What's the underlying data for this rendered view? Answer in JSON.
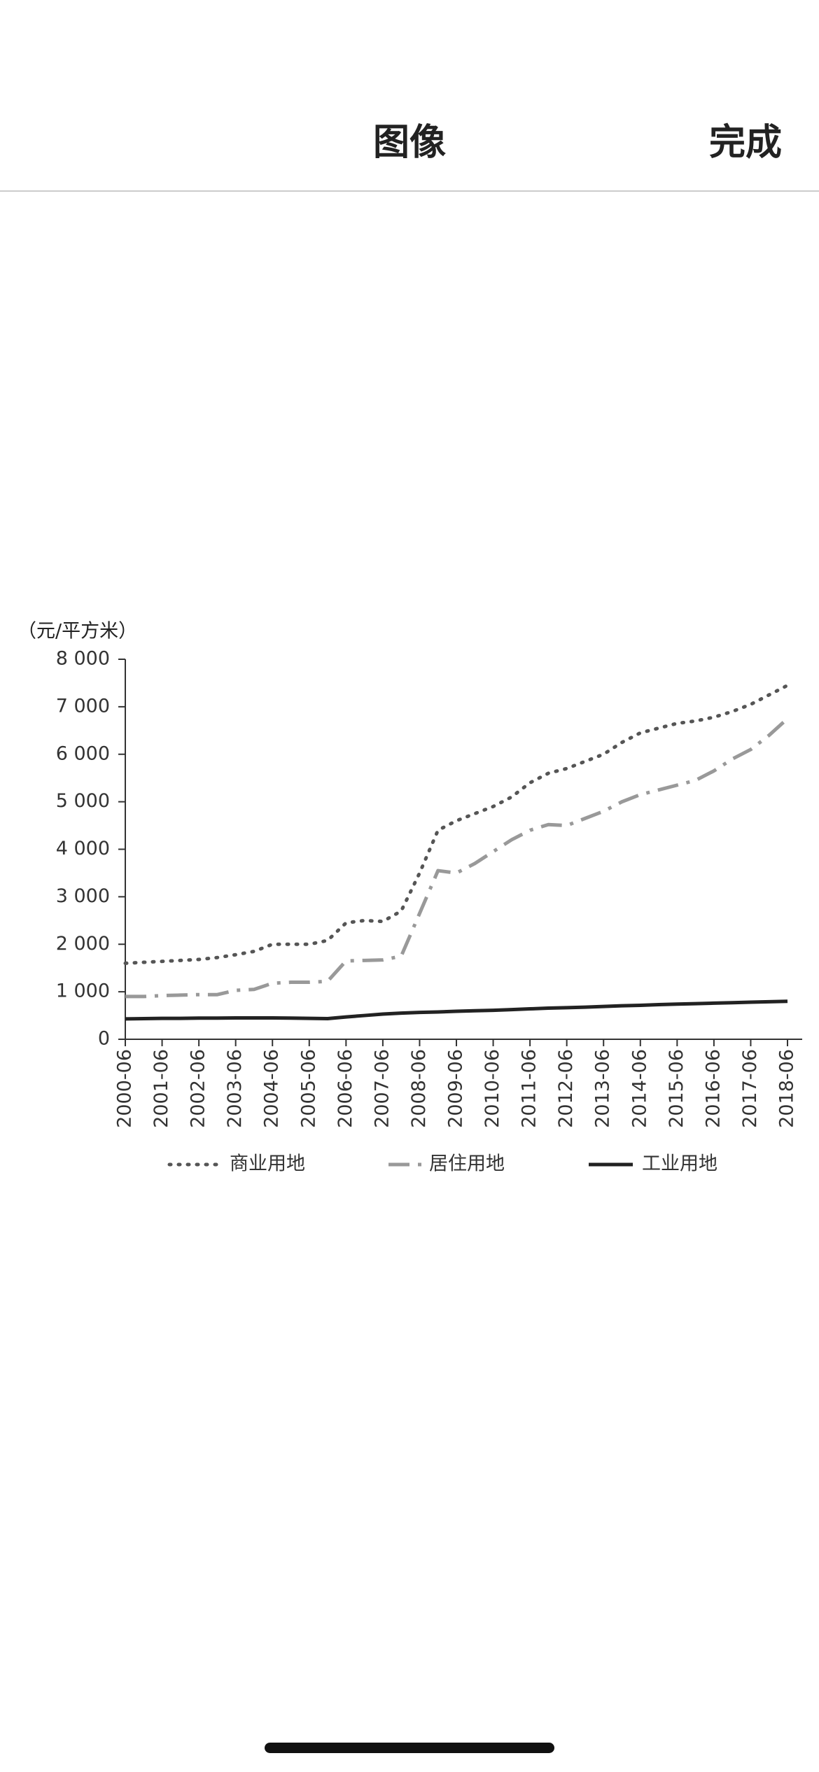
{
  "header": {
    "title": "图像",
    "done": "完成"
  },
  "chart_data": {
    "type": "line",
    "y_label": "（元/平方米）",
    "categories": [
      "2000-06",
      null,
      "2001-06",
      null,
      "2002-06",
      null,
      "2003-06",
      null,
      "2004-06",
      null,
      "2005-06",
      null,
      "2006-06",
      null,
      "2007-06",
      null,
      "2008-06",
      null,
      "2009-06",
      null,
      "2010-06",
      null,
      "2011-06",
      null,
      "2012-06",
      null,
      "2013-06",
      null,
      "2014-06",
      null,
      "2015-06",
      null,
      "2016-06",
      null,
      "2017-06",
      null,
      "2018-06"
    ],
    "series": [
      {
        "name": "商业用地",
        "color": "#555555",
        "values": [
          1600,
          1620,
          1640,
          1660,
          1680,
          1720,
          1780,
          1850,
          2000,
          2000,
          2000,
          2080,
          2450,
          2500,
          2480,
          2700,
          3500,
          4400,
          4600,
          4750,
          4900,
          5100,
          5400,
          5600,
          5700,
          5850,
          6000,
          6250,
          6450,
          6550,
          6650,
          6700,
          6780,
          6900,
          7050,
          7250,
          7450
        ]
      },
      {
        "name": "居住用地",
        "color": "#999999",
        "values": [
          900,
          900,
          920,
          930,
          940,
          940,
          1030,
          1050,
          1180,
          1200,
          1200,
          1220,
          1650,
          1660,
          1670,
          1750,
          2650,
          3550,
          3500,
          3700,
          3950,
          4200,
          4400,
          4520,
          4500,
          4650,
          4800,
          5000,
          5150,
          5250,
          5350,
          5450,
          5650,
          5900,
          6100,
          6400,
          6750
        ]
      },
      {
        "name": "工业用地",
        "color": "#222222",
        "values": [
          430,
          435,
          440,
          440,
          445,
          445,
          450,
          450,
          450,
          445,
          440,
          435,
          470,
          500,
          530,
          550,
          565,
          575,
          590,
          600,
          610,
          625,
          640,
          655,
          665,
          675,
          690,
          705,
          715,
          730,
          740,
          750,
          760,
          770,
          780,
          790,
          800
        ]
      }
    ],
    "ylim": [
      0,
      8000
    ],
    "yticks": [
      0,
      {
        "value": 1000,
        "label": "1 000"
      },
      {
        "value": 2000,
        "label": "2 000"
      },
      {
        "value": 3000,
        "label": "3 000"
      },
      {
        "value": 4000,
        "label": "4 000"
      },
      {
        "value": 5000,
        "label": "5 000"
      },
      {
        "value": 6000,
        "label": "6 000"
      },
      {
        "value": 7000,
        "label": "7 000"
      },
      {
        "value": 8000,
        "label": "8 000"
      }
    ],
    "grid": false,
    "legend": "bottom"
  }
}
